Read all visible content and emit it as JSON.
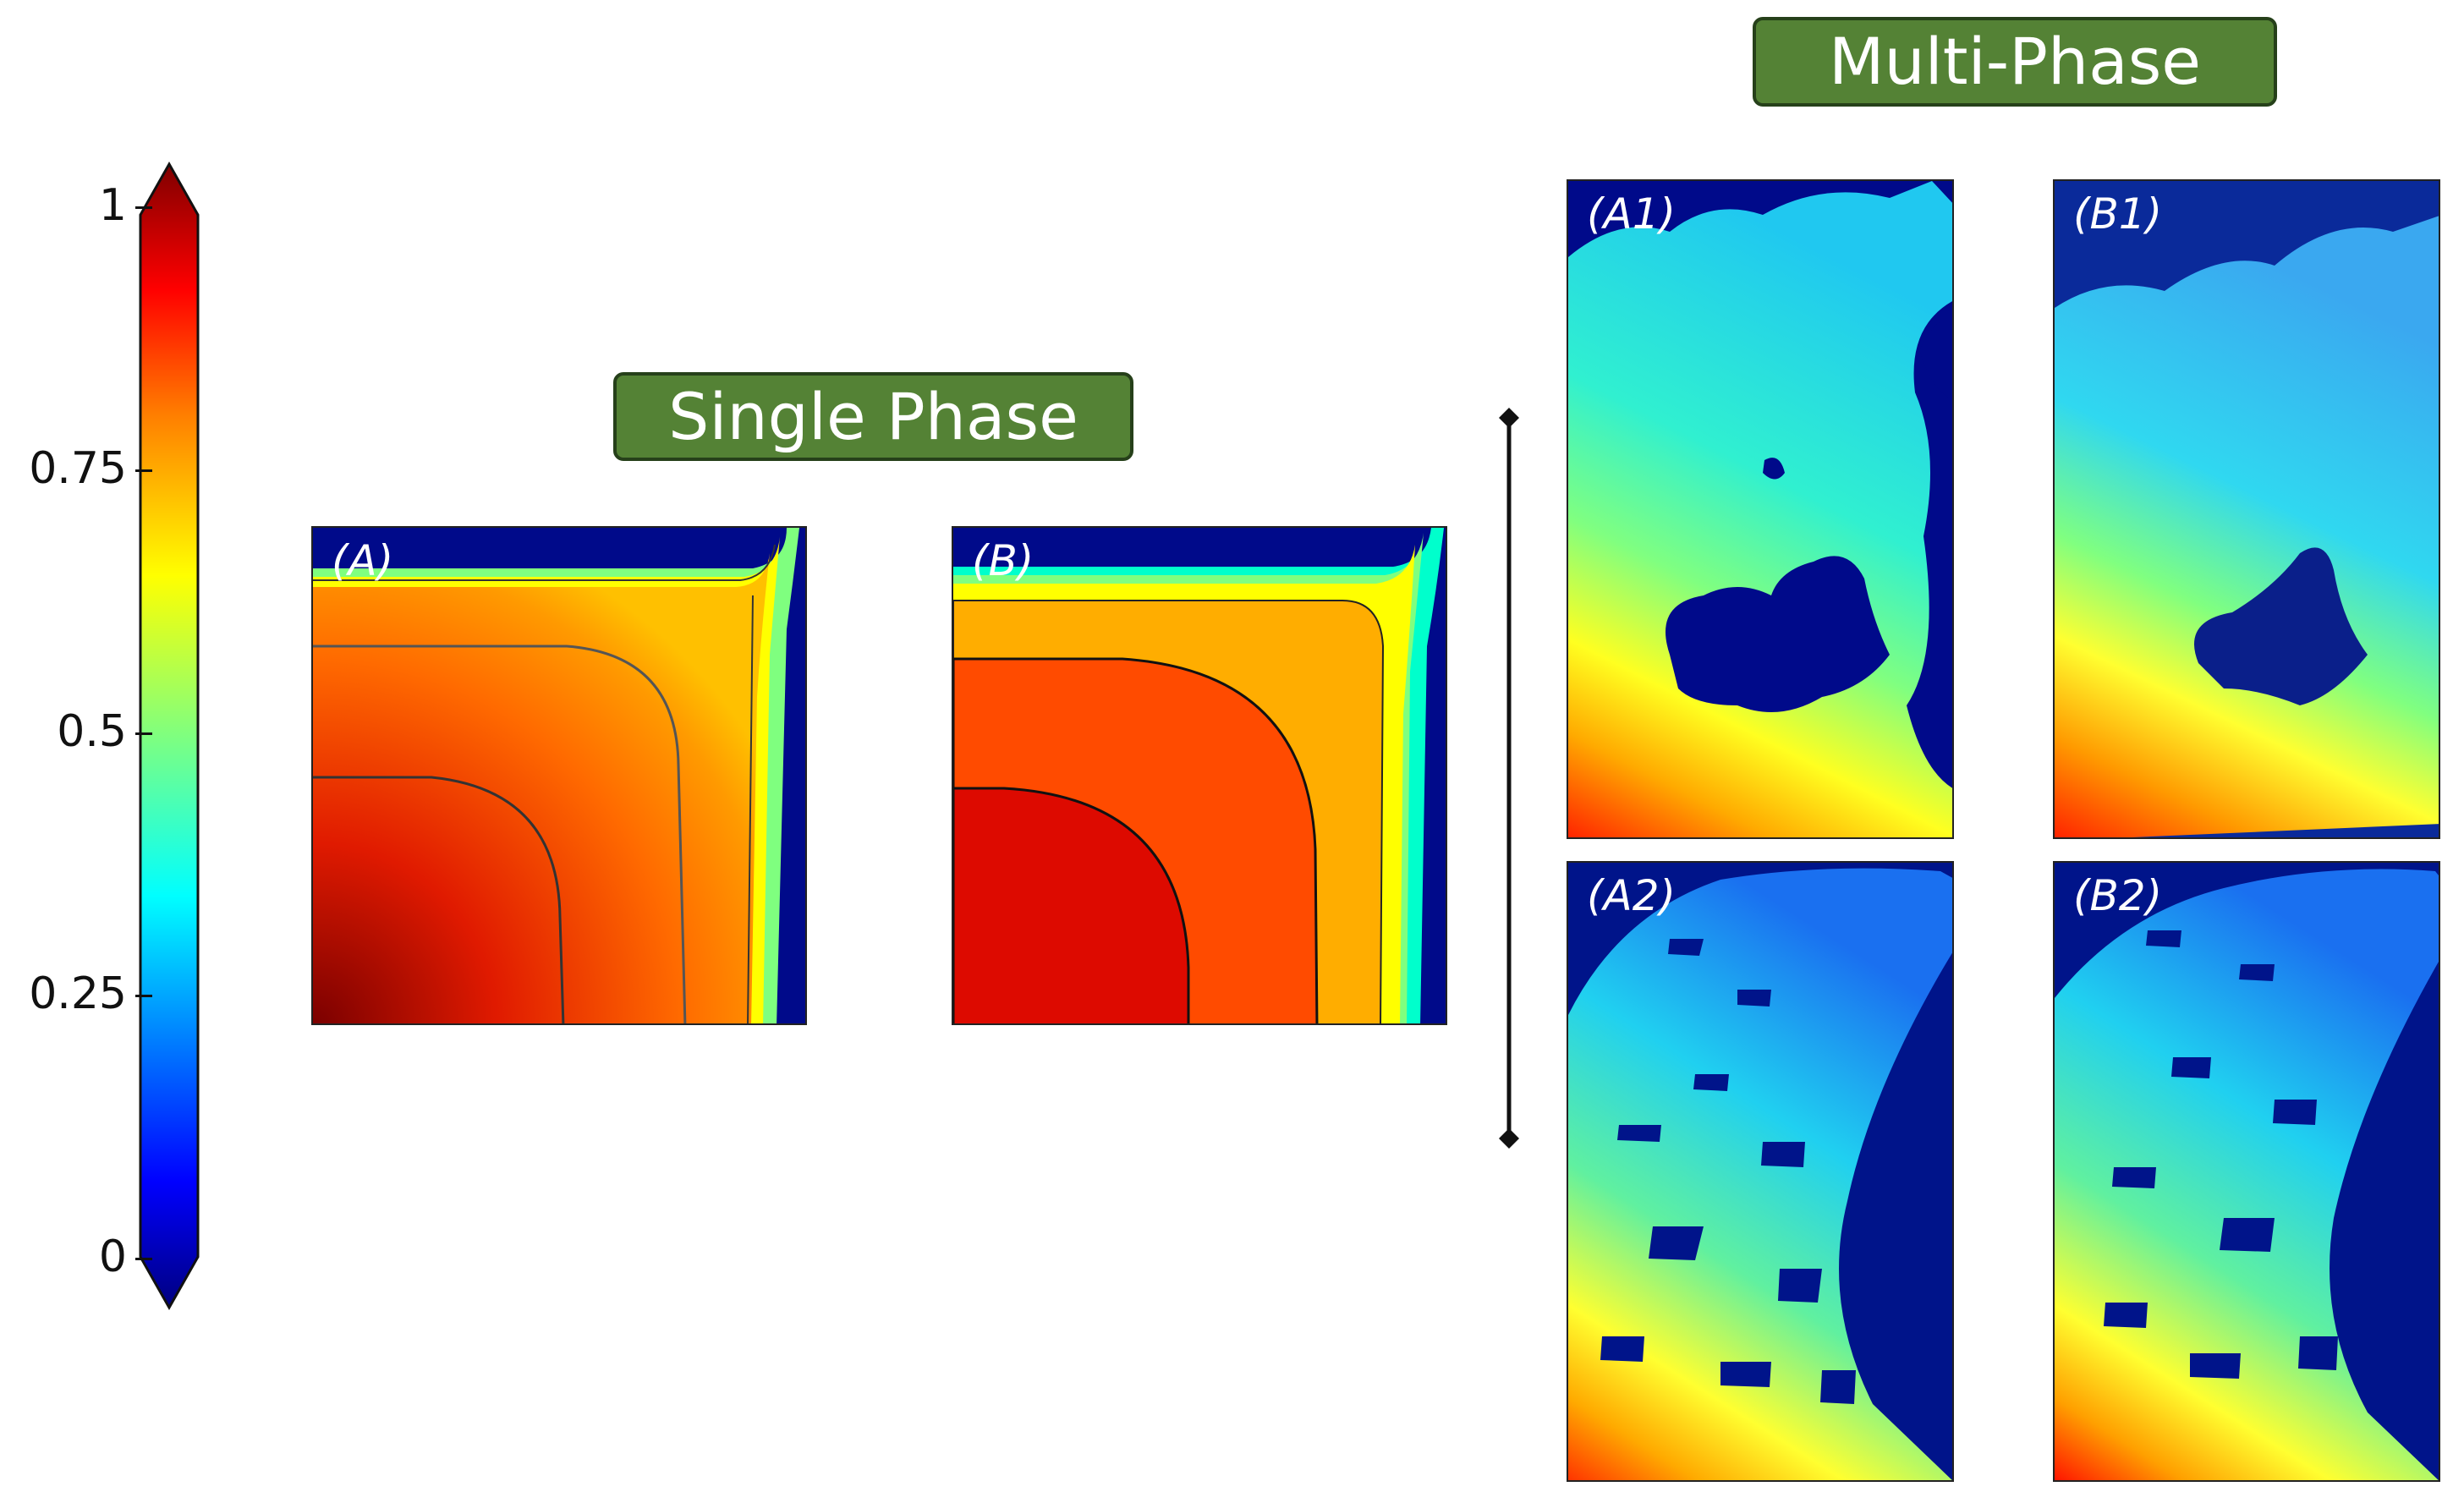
{
  "colorbar": {
    "ticks": [
      {
        "label": "1",
        "value": 1
      },
      {
        "label": "0.75",
        "value": 0.75
      },
      {
        "label": "0.5",
        "value": 0.5
      },
      {
        "label": "0.25",
        "value": 0.25
      },
      {
        "label": "0",
        "value": 0
      }
    ],
    "colors": [
      "#00007f",
      "#0000ff",
      "#007fff",
      "#00ffff",
      "#7fff7f",
      "#ffff00",
      "#ff7f00",
      "#ff0000",
      "#7f0000"
    ]
  },
  "single_phase": {
    "title": "Single Phase",
    "panels": [
      {
        "label": "(A)"
      },
      {
        "label": "(B)"
      }
    ]
  },
  "multi_phase": {
    "title": "Multi-Phase",
    "panels": [
      {
        "label": "(A1)"
      },
      {
        "label": "(B1)"
      },
      {
        "label": "(A2)"
      },
      {
        "label": "(B2)"
      }
    ]
  }
}
